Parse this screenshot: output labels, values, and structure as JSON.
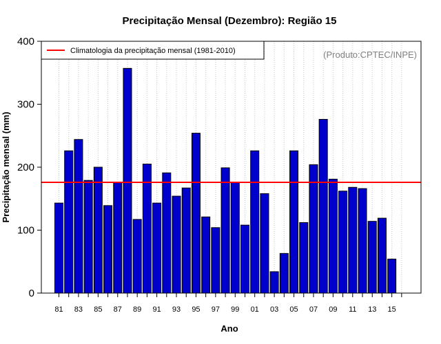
{
  "colors": {
    "bar_fill": "#0000cd",
    "bar_stroke": "#000000",
    "mean_line": "#ff0000",
    "grid": "#c8c8c8",
    "source_text": "#7f7f7f"
  },
  "chart_data": {
    "type": "bar",
    "title": "Precipitação Mensal (Dezembro): Região 15",
    "xlabel": "Ano",
    "ylabel": "Precipitação mensal (mm)",
    "source": "(Produto:CPTEC/INPE)",
    "ylim": [
      0,
      400
    ],
    "yticks": [
      0,
      100,
      200,
      300,
      400
    ],
    "xtick_labels": [
      "81",
      "83",
      "85",
      "87",
      "89",
      "91",
      "93",
      "95",
      "97",
      "99",
      "01",
      "03",
      "05",
      "07",
      "09",
      "11",
      "13",
      "15"
    ],
    "categories": [
      "81",
      "82",
      "83",
      "84",
      "85",
      "86",
      "87",
      "88",
      "89",
      "90",
      "91",
      "92",
      "93",
      "94",
      "95",
      "96",
      "97",
      "98",
      "99",
      "00",
      "01",
      "02",
      "03",
      "04",
      "05",
      "06",
      "07",
      "08",
      "09",
      "10",
      "11",
      "12",
      "13",
      "14",
      "15"
    ],
    "values": [
      143,
      226,
      244,
      179,
      200,
      139,
      176,
      357,
      117,
      205,
      143,
      191,
      154,
      167,
      254,
      121,
      104,
      199,
      176,
      108,
      226,
      158,
      34,
      63,
      226,
      112,
      204,
      276,
      181,
      162,
      168,
      166,
      114,
      119,
      54
    ],
    "climatology": {
      "label": "Climatologia da precipitação mensal (1981-2010)",
      "value": 176
    },
    "grid": "vertical dotted",
    "legend_position": "top-left"
  }
}
